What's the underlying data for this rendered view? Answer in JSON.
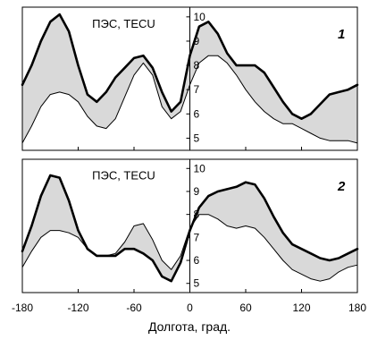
{
  "chart_data": [
    {
      "type": "area",
      "panel_label": "1",
      "ylabel": "ПЭС, TECU",
      "xlim": [
        -180,
        180
      ],
      "ylim": [
        4.5,
        10.4
      ],
      "yticks": [
        5,
        6,
        7,
        8,
        9,
        10
      ],
      "x": [
        -180,
        -170,
        -160,
        -150,
        -140,
        -130,
        -120,
        -110,
        -100,
        -90,
        -80,
        -70,
        -60,
        -50,
        -40,
        -30,
        -20,
        -10,
        0,
        10,
        20,
        30,
        40,
        50,
        60,
        70,
        80,
        90,
        100,
        110,
        120,
        130,
        140,
        150,
        160,
        170,
        180
      ],
      "series": [
        {
          "values": [
            7.2,
            8.0,
            9.0,
            9.8,
            10.1,
            9.4,
            8.0,
            6.8,
            6.5,
            6.9,
            7.5,
            7.9,
            8.3,
            8.4,
            7.9,
            6.9,
            6.1,
            6.5,
            8.4,
            9.6,
            9.8,
            9.3,
            8.5,
            8.0,
            8.0,
            8.0,
            7.7,
            7.1,
            6.5,
            6.0,
            5.8,
            6.0,
            6.4,
            6.8,
            6.9,
            7.0,
            7.2
          ]
        },
        {
          "values": [
            4.8,
            5.5,
            6.3,
            6.8,
            6.9,
            6.8,
            6.5,
            5.9,
            5.5,
            5.4,
            5.8,
            6.7,
            7.6,
            8.1,
            7.6,
            6.3,
            5.8,
            6.1,
            7.2,
            8.1,
            8.4,
            8.4,
            8.1,
            7.6,
            7.0,
            6.5,
            6.1,
            5.8,
            5.6,
            5.6,
            5.4,
            5.2,
            5.0,
            4.9,
            4.9,
            4.9,
            4.8
          ]
        }
      ]
    },
    {
      "type": "area",
      "panel_label": "2",
      "ylabel": "ПЭС, TECU",
      "xlim": [
        -180,
        180
      ],
      "ylim": [
        4.6,
        10.4
      ],
      "yticks": [
        5,
        6,
        7,
        8,
        9,
        10
      ],
      "x": [
        -180,
        -170,
        -160,
        -150,
        -140,
        -130,
        -120,
        -110,
        -100,
        -90,
        -80,
        -70,
        -60,
        -50,
        -40,
        -30,
        -20,
        -10,
        0,
        10,
        20,
        30,
        40,
        50,
        60,
        70,
        80,
        90,
        100,
        110,
        120,
        130,
        140,
        150,
        160,
        170,
        180
      ],
      "series": [
        {
          "values": [
            6.4,
            7.5,
            8.8,
            9.7,
            9.6,
            8.6,
            7.3,
            6.5,
            6.2,
            6.2,
            6.2,
            6.5,
            6.5,
            6.3,
            6.0,
            5.3,
            5.1,
            5.9,
            7.3,
            8.3,
            8.8,
            9.0,
            9.1,
            9.2,
            9.4,
            9.3,
            8.7,
            7.9,
            7.2,
            6.7,
            6.5,
            6.3,
            6.1,
            6.0,
            6.1,
            6.3,
            6.5
          ]
        },
        {
          "values": [
            5.7,
            6.4,
            7.0,
            7.3,
            7.3,
            7.2,
            7.0,
            6.5,
            6.2,
            6.2,
            6.3,
            6.8,
            7.5,
            7.6,
            6.9,
            6.0,
            5.6,
            6.2,
            7.4,
            8.0,
            8.0,
            7.8,
            7.5,
            7.4,
            7.5,
            7.4,
            7.0,
            6.5,
            6.0,
            5.6,
            5.4,
            5.2,
            5.1,
            5.2,
            5.5,
            5.7,
            5.8
          ]
        }
      ]
    }
  ],
  "x_axis": {
    "ticks": [
      -180,
      -120,
      -60,
      0,
      60,
      120,
      180
    ],
    "label": "Долгота, град."
  }
}
